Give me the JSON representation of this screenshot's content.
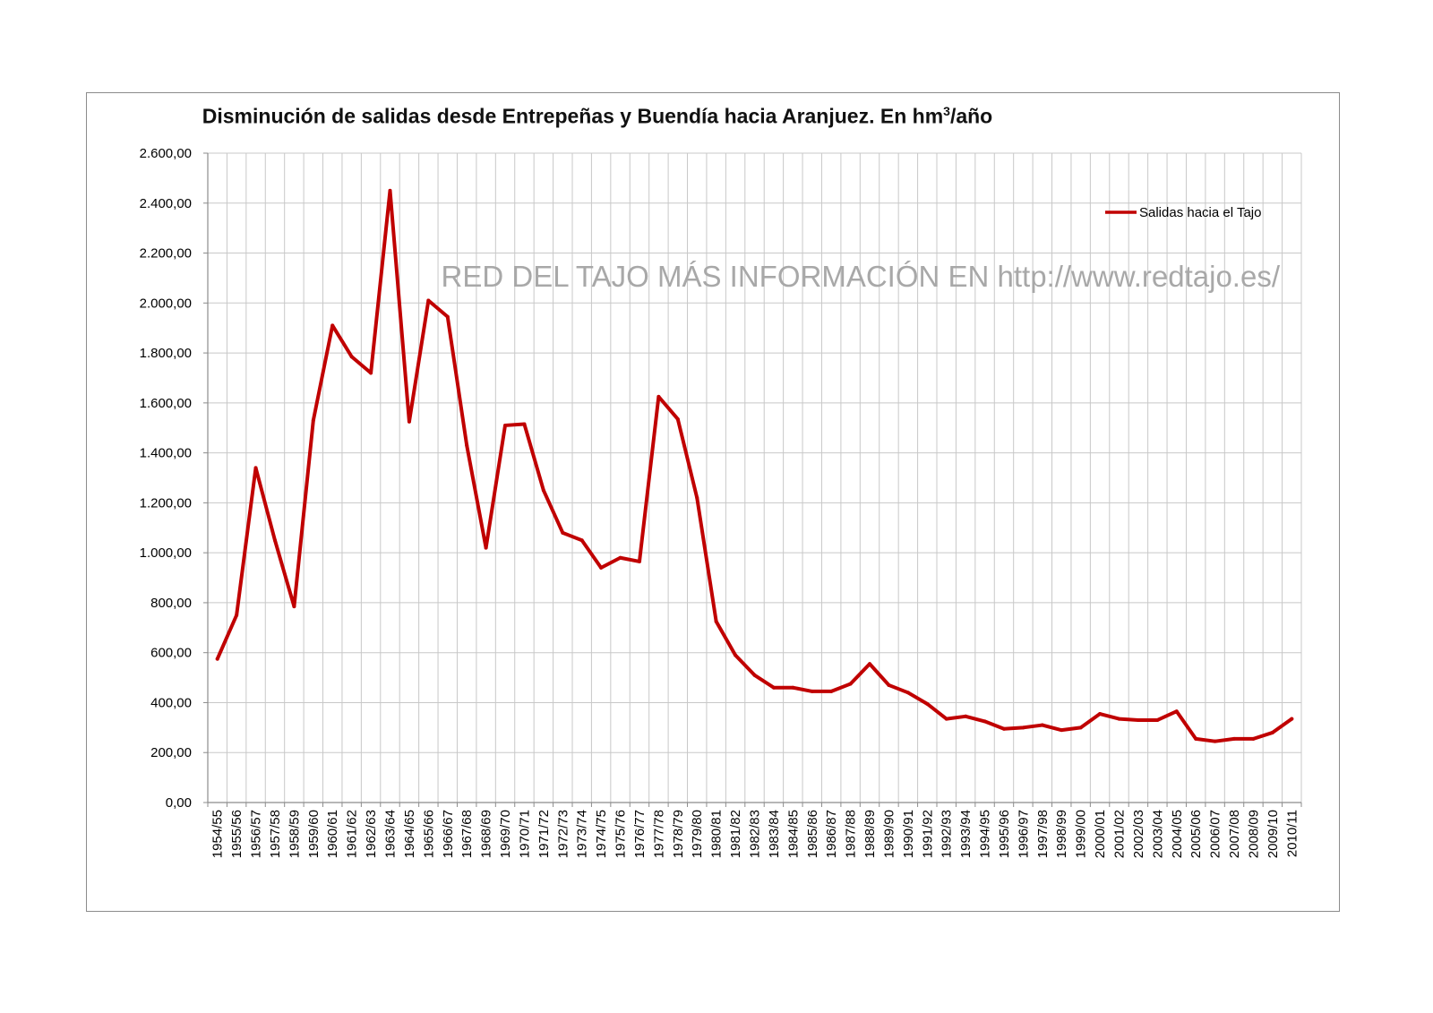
{
  "chart_data": {
    "type": "line",
    "title_main": "Disminución de salidas desde Entrepeñas y Buendía hacia Aranjuez. En hm",
    "title_sup": "3",
    "title_tail": "/año",
    "xlabel": "",
    "ylabel": "",
    "ylim": [
      0,
      2600
    ],
    "y_ticks": [
      0,
      200,
      400,
      600,
      800,
      1000,
      1200,
      1400,
      1600,
      1800,
      2000,
      2200,
      2400,
      2600
    ],
    "y_tick_labels": [
      "0,00",
      "200,00",
      "400,00",
      "600,00",
      "800,00",
      "1.000,00",
      "1.200,00",
      "1.400,00",
      "1.600,00",
      "1.800,00",
      "2.000,00",
      "2.200,00",
      "2.400,00",
      "2.600,00"
    ],
    "grid": "both",
    "legend_position": "top-right",
    "watermark": "RED DEL TAJO MÁS INFORMACIÓN EN http://www.redtajo.es/",
    "color": "#c00000",
    "categories": [
      "1954/55",
      "1955/56",
      "1956/57",
      "1957/58",
      "1958/59",
      "1959/60",
      "1960/61",
      "1961/62",
      "1962/63",
      "1963/64",
      "1964/65",
      "1965/66",
      "1966/67",
      "1967/68",
      "1968/69",
      "1969/70",
      "1970/71",
      "1971/72",
      "1972/73",
      "1973/74",
      "1974/75",
      "1975/76",
      "1976/77",
      "1977/78",
      "1978/79",
      "1979/80",
      "1980/81",
      "1981/82",
      "1982/83",
      "1983/84",
      "1984/85",
      "1985/86",
      "1986/87",
      "1987/88",
      "1988/89",
      "1989/90",
      "1990/91",
      "1991/92",
      "1992/93",
      "1993/94",
      "1994/95",
      "1995/96",
      "1996/97",
      "1997/98",
      "1998/99",
      "1999/00",
      "2000/01",
      "2001/02",
      "2002/03",
      "2003/04",
      "2004/05",
      "2005/06",
      "2006/07",
      "2007/08",
      "2008/09",
      "2009/10",
      "2010/11"
    ],
    "series": [
      {
        "name": "Salidas hacia el Tajo",
        "values": [
          575,
          750,
          1340,
          1050,
          785,
          1530,
          1910,
          1785,
          1720,
          2450,
          1525,
          2010,
          1945,
          1430,
          1020,
          1510,
          1515,
          1250,
          1080,
          1050,
          940,
          980,
          965,
          1625,
          1535,
          1220,
          725,
          590,
          510,
          460,
          460,
          445,
          445,
          475,
          555,
          470,
          440,
          395,
          335,
          345,
          325,
          295,
          300,
          310,
          290,
          300,
          355,
          335,
          330,
          330,
          365,
          255,
          245,
          255,
          255,
          280,
          335
        ]
      }
    ]
  }
}
